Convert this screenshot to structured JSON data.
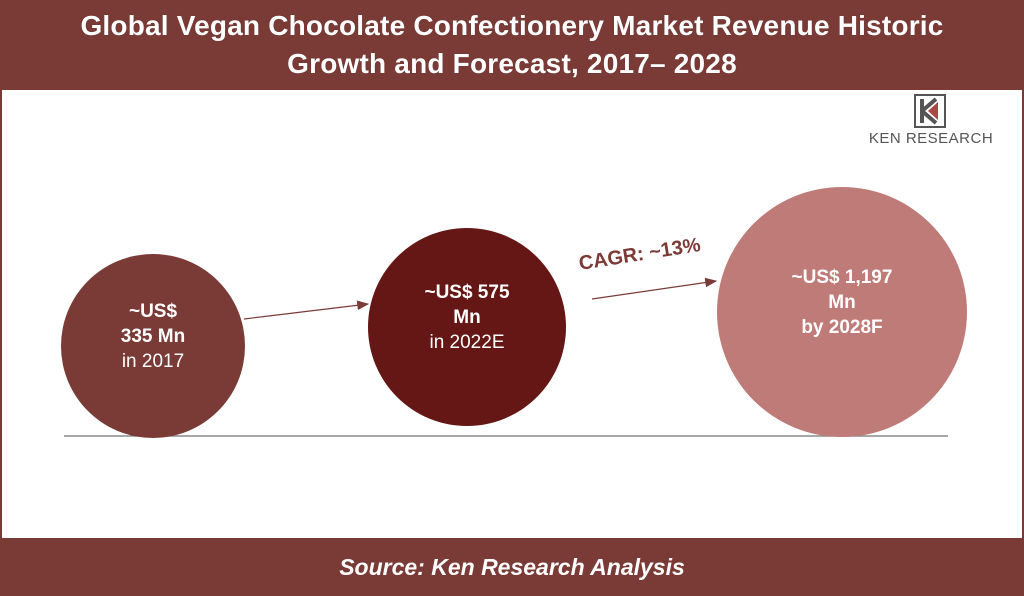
{
  "title": {
    "line1": "Global Vegan Chocolate Confectionery Market Revenue Historic",
    "line2": "Growth and Forecast, 2017– 2028"
  },
  "source": "Source: Ken Research Analysis",
  "logo": {
    "text": "KEN RESEARCH"
  },
  "colors": {
    "band": "#7a3a36",
    "bubble_2017": "#7a3a36",
    "bubble_2022": "#641715",
    "bubble_2028": "#bf7b78",
    "arrow": "#7a3a36"
  },
  "cagr_label": "CAGR: ~13%",
  "chart_data": {
    "type": "bubble",
    "unit": "US$ Mn",
    "points": [
      {
        "year": "2017",
        "value": 335,
        "lines": [
          "~US$",
          "335 Mn",
          "in 2017"
        ]
      },
      {
        "year": "2022E",
        "value": 575,
        "lines": [
          "~US$ 575",
          "Mn",
          "in 2022E"
        ]
      },
      {
        "year": "2028F",
        "value": 1197,
        "lines": [
          "~US$ 1,197",
          "Mn",
          "by 2028F"
        ]
      }
    ],
    "annotations": [
      "CAGR: ~13%"
    ]
  }
}
